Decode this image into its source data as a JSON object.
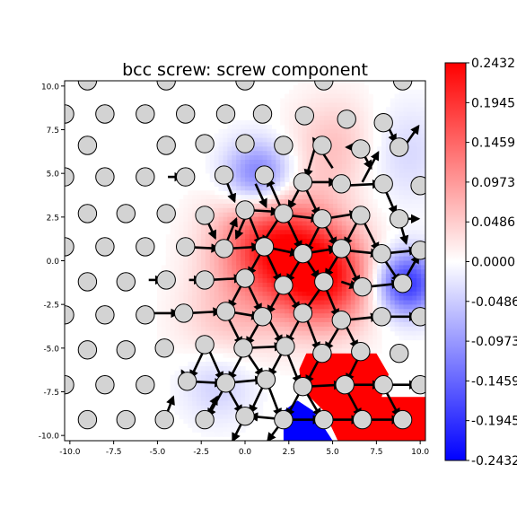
{
  "chart_data": {
    "type": "heatmap",
    "title": "bcc screw: screw component",
    "xlabel": "",
    "ylabel": "",
    "xlim": [
      -10.3,
      10.3
    ],
    "ylim": [
      -10.3,
      10.3
    ],
    "xticks": [
      "-10.0",
      "-7.5",
      "-5.0",
      "-2.5",
      "0.0",
      "2.5",
      "5.0",
      "7.5",
      "10.0"
    ],
    "yticks": [
      "-10.0",
      "-7.5",
      "-5.0",
      "-2.5",
      "0.0",
      "2.5",
      "5.0",
      "7.5",
      "10.0"
    ],
    "colorbar": {
      "colormap": "bwr",
      "min": -0.2432,
      "max": 0.2432,
      "ticks": [
        {
          "value": 0.2432,
          "label": "0.2432"
        },
        {
          "value": 0.1945,
          "label": "0.1945"
        },
        {
          "value": 0.1459,
          "label": "0.1459"
        },
        {
          "value": 0.0973,
          "label": "0.0973"
        },
        {
          "value": 0.0486,
          "label": "0.0486"
        },
        {
          "value": 0.0,
          "label": "0.0000"
        },
        {
          "value": -0.0486,
          "label": "-0.0486"
        },
        {
          "value": -0.0973,
          "label": "-0.0973"
        },
        {
          "value": -0.1459,
          "label": "-0.1459"
        },
        {
          "value": -0.1945,
          "label": "-0.1945"
        },
        {
          "value": -0.2432,
          "label": "-0.2432"
        }
      ]
    },
    "field_blobs": [
      {
        "x": 1.5,
        "y": 1.0,
        "amplitude": 0.2,
        "spread": 2.2
      },
      {
        "x": 4.5,
        "y": -1.0,
        "amplitude": 0.22,
        "spread": 2.0
      },
      {
        "x": 0.8,
        "y": 4.8,
        "amplitude": -0.15,
        "spread": 1.4
      },
      {
        "x": 9.2,
        "y": -1.3,
        "amplitude": -0.2,
        "spread": 1.3
      },
      {
        "x": 5.5,
        "y": 6.5,
        "amplitude": 0.07,
        "spread": 2.0
      },
      {
        "x": 8.5,
        "y": 6.2,
        "amplitude": -0.05,
        "spread": 2.0
      },
      {
        "x": -1.0,
        "y": -3.5,
        "amplitude": 0.05,
        "spread": 2.0
      },
      {
        "x": -1.5,
        "y": -7.0,
        "amplitude": -0.05,
        "spread": 1.5
      }
    ],
    "saturated_regions": [
      {
        "color": "#ff0000",
        "polygon": [
          [
            3.5,
            -5.3
          ],
          [
            7.5,
            -5.3
          ],
          [
            8.2,
            -6.5
          ],
          [
            7.8,
            -7.8
          ],
          [
            10.3,
            -7.8
          ],
          [
            10.3,
            -10.3
          ],
          [
            5.3,
            -10.3
          ],
          [
            4.5,
            -8.6
          ],
          [
            3.2,
            -7.3
          ],
          [
            3.1,
            -6.2
          ]
        ]
      },
      {
        "color": "#0000ff",
        "polygon": [
          [
            2.2,
            -10.3
          ],
          [
            5.0,
            -10.3
          ],
          [
            3.9,
            -8.6
          ],
          [
            3.0,
            -8.0
          ],
          [
            2.2,
            -8.6
          ]
        ]
      }
    ],
    "atoms": [
      [
        -9.0,
        10.3
      ],
      [
        -4.5,
        10.3
      ],
      [
        0.0,
        10.3
      ],
      [
        4.5,
        10.3
      ],
      [
        9.0,
        10.3
      ],
      [
        -10.3,
        8.4
      ],
      [
        -8.0,
        8.4
      ],
      [
        -5.7,
        8.4
      ],
      [
        -3.4,
        8.4
      ],
      [
        -1.1,
        8.4
      ],
      [
        1.0,
        8.4
      ],
      [
        3.4,
        8.3
      ],
      [
        5.8,
        8.1
      ],
      [
        7.9,
        7.9
      ],
      [
        -9.0,
        6.6
      ],
      [
        -4.5,
        6.6
      ],
      [
        -2.3,
        6.7
      ],
      [
        0.0,
        6.7
      ],
      [
        2.2,
        6.6
      ],
      [
        4.4,
        6.6
      ],
      [
        6.6,
        6.4
      ],
      [
        8.8,
        6.5
      ],
      [
        -10.3,
        4.8
      ],
      [
        -8.0,
        4.8
      ],
      [
        -5.7,
        4.8
      ],
      [
        -3.4,
        4.8
      ],
      [
        -1.2,
        4.9
      ],
      [
        1.1,
        4.9
      ],
      [
        3.3,
        4.5
      ],
      [
        5.5,
        4.4
      ],
      [
        7.9,
        4.4
      ],
      [
        10.0,
        4.3
      ],
      [
        -9.0,
        2.7
      ],
      [
        -6.8,
        2.7
      ],
      [
        -4.5,
        2.7
      ],
      [
        -2.3,
        2.6
      ],
      [
        0.0,
        2.9
      ],
      [
        2.2,
        2.7
      ],
      [
        4.4,
        2.4
      ],
      [
        6.6,
        2.6
      ],
      [
        8.8,
        2.4
      ],
      [
        -10.3,
        0.8
      ],
      [
        -8.0,
        0.8
      ],
      [
        -5.7,
        0.8
      ],
      [
        -3.4,
        0.8
      ],
      [
        -1.2,
        0.7
      ],
      [
        1.1,
        0.8
      ],
      [
        3.3,
        0.4
      ],
      [
        5.5,
        0.7
      ],
      [
        7.8,
        0.4
      ],
      [
        10.0,
        0.6
      ],
      [
        -9.0,
        -1.2
      ],
      [
        -6.8,
        -1.2
      ],
      [
        -4.5,
        -1.1
      ],
      [
        -2.3,
        -1.1
      ],
      [
        0.0,
        -1.0
      ],
      [
        2.2,
        -1.4
      ],
      [
        4.5,
        -1.2
      ],
      [
        6.7,
        -1.5
      ],
      [
        9.0,
        -1.3
      ],
      [
        -10.3,
        -3.1
      ],
      [
        -8.0,
        -3.1
      ],
      [
        -5.7,
        -3.1
      ],
      [
        -3.5,
        -3.0
      ],
      [
        -1.1,
        -2.9
      ],
      [
        1.0,
        -3.2
      ],
      [
        3.3,
        -3.0
      ],
      [
        5.5,
        -3.4
      ],
      [
        7.8,
        -3.2
      ],
      [
        10.0,
        -3.2
      ],
      [
        -9.0,
        -5.1
      ],
      [
        -6.8,
        -5.1
      ],
      [
        -4.6,
        -5.0
      ],
      [
        -2.3,
        -4.8
      ],
      [
        -0.1,
        -5.0
      ],
      [
        2.3,
        -4.9
      ],
      [
        4.4,
        -5.3
      ],
      [
        6.6,
        -5.2
      ],
      [
        8.8,
        -5.3
      ],
      [
        -10.3,
        -7.1
      ],
      [
        -8.0,
        -7.1
      ],
      [
        -5.7,
        -7.1
      ],
      [
        -3.3,
        -6.9
      ],
      [
        -1.1,
        -7.0
      ],
      [
        1.2,
        -6.8
      ],
      [
        3.3,
        -7.2
      ],
      [
        5.7,
        -7.1
      ],
      [
        7.9,
        -7.1
      ],
      [
        10.0,
        -7.1
      ],
      [
        -9.0,
        -9.1
      ],
      [
        -6.8,
        -9.1
      ],
      [
        -4.6,
        -9.1
      ],
      [
        -2.3,
        -9.1
      ],
      [
        0.0,
        -8.9
      ],
      [
        2.2,
        -9.1
      ],
      [
        4.5,
        -9.1
      ],
      [
        6.7,
        -9.1
      ],
      [
        9.0,
        -9.1
      ]
    ],
    "arrows": [
      [
        0.1,
        2.9,
        1.9,
        2.8
      ],
      [
        0.1,
        2.9,
        0.9,
        0.9
      ],
      [
        0.2,
        2.9,
        -0.5,
        1.3
      ],
      [
        0.6,
        4.4,
        1.2,
        3.1
      ],
      [
        2.2,
        2.7,
        1.3,
        4.7
      ],
      [
        2.1,
        2.7,
        1.0,
        1.0
      ],
      [
        2.5,
        2.6,
        4.2,
        2.4
      ],
      [
        2.3,
        2.6,
        3.2,
        0.7
      ],
      [
        3.3,
        4.5,
        2.5,
        3.0
      ],
      [
        3.3,
        4.5,
        4.2,
        2.6
      ],
      [
        3.5,
        4.5,
        5.2,
        4.5
      ],
      [
        5.0,
        5.3,
        3.9,
        7.0
      ],
      [
        4.4,
        2.3,
        3.5,
        0.5
      ],
      [
        4.5,
        2.4,
        6.4,
        2.7
      ],
      [
        4.4,
        2.3,
        5.2,
        0.9
      ],
      [
        6.6,
        2.6,
        5.7,
        0.9
      ],
      [
        6.6,
        2.6,
        7.6,
        0.6
      ],
      [
        5.6,
        4.3,
        7.7,
        4.4
      ],
      [
        7.9,
        4.3,
        8.6,
        2.7
      ],
      [
        6.7,
        4.5,
        7.6,
        6.2
      ],
      [
        6.9,
        6.5,
        5.8,
        6.5
      ],
      [
        9.0,
        6.4,
        9.9,
        7.7
      ],
      [
        8.8,
        2.4,
        9.9,
        2.4
      ],
      [
        8.8,
        2.4,
        9.2,
        1.0
      ],
      [
        -1.2,
        0.7,
        -0.5,
        2.4
      ],
      [
        -1.0,
        0.7,
        0.8,
        0.8
      ],
      [
        1.1,
        0.8,
        3.0,
        0.4
      ],
      [
        1.1,
        0.7,
        2.0,
        -1.2
      ],
      [
        1.1,
        0.8,
        0.2,
        -0.8
      ],
      [
        3.3,
        0.4,
        5.2,
        0.7
      ],
      [
        3.3,
        0.4,
        4.2,
        -1.0
      ],
      [
        3.3,
        0.3,
        2.4,
        -1.2
      ],
      [
        5.5,
        0.6,
        4.6,
        -0.9
      ],
      [
        5.7,
        0.6,
        7.6,
        0.4
      ],
      [
        5.6,
        0.6,
        6.5,
        -1.3
      ],
      [
        7.8,
        0.4,
        9.8,
        0.6
      ],
      [
        7.8,
        0.3,
        8.8,
        -1.2
      ],
      [
        5.5,
        -1.2,
        6.4,
        -1.5
      ],
      [
        6.9,
        -1.5,
        8.8,
        -1.3
      ],
      [
        9.0,
        -1.3,
        9.9,
        0.3
      ],
      [
        -3.2,
        -1.1,
        -2.5,
        -1.1
      ],
      [
        -2.1,
        -1.1,
        -0.2,
        -1.0
      ],
      [
        0.0,
        -1.0,
        0.9,
        -2.9
      ],
      [
        0.0,
        -1.0,
        -0.9,
        -2.7
      ],
      [
        2.2,
        -1.4,
        1.3,
        -3.0
      ],
      [
        2.2,
        -1.4,
        3.1,
        -2.8
      ],
      [
        4.5,
        -1.3,
        3.4,
        -2.9
      ],
      [
        4.5,
        -1.3,
        5.3,
        -3.2
      ],
      [
        -3.3,
        -3.0,
        -1.4,
        -2.9
      ],
      [
        -1.0,
        -2.9,
        0.8,
        -3.2
      ],
      [
        -1.1,
        -3.0,
        -0.2,
        -4.8
      ],
      [
        1.0,
        -3.2,
        0.1,
        -4.8
      ],
      [
        1.2,
        -3.1,
        2.1,
        -4.7
      ],
      [
        3.3,
        -3.0,
        2.4,
        -4.7
      ],
      [
        3.4,
        -3.0,
        4.2,
        -5.1
      ],
      [
        5.7,
        -3.4,
        7.6,
        -3.2
      ],
      [
        5.6,
        -3.4,
        4.6,
        -5.1
      ],
      [
        5.6,
        -3.4,
        6.4,
        -5.0
      ],
      [
        7.9,
        -3.2,
        9.8,
        -3.2
      ],
      [
        -2.2,
        -4.8,
        -1.3,
        -6.8
      ],
      [
        -2.2,
        -4.8,
        -3.1,
        -6.7
      ],
      [
        -0.1,
        -5.0,
        2.1,
        -4.9
      ],
      [
        0.0,
        -5.1,
        -0.9,
        -6.8
      ],
      [
        0.0,
        -5.1,
        1.0,
        -6.6
      ],
      [
        2.3,
        -4.9,
        1.4,
        -6.6
      ],
      [
        2.3,
        -5.0,
        3.1,
        -7.0
      ],
      [
        4.4,
        -5.3,
        3.5,
        -7.0
      ],
      [
        6.6,
        -5.3,
        5.8,
        -6.9
      ],
      [
        -3.3,
        -6.9,
        -1.3,
        -7.0
      ],
      [
        -1.1,
        -7.0,
        1.0,
        -6.8
      ],
      [
        -1.1,
        -7.1,
        -2.1,
        -8.9
      ],
      [
        -1.1,
        -7.1,
        -0.2,
        -8.7
      ],
      [
        1.2,
        -6.8,
        2.0,
        -8.9
      ],
      [
        1.2,
        -6.8,
        0.3,
        -8.7
      ],
      [
        3.5,
        -7.2,
        5.5,
        -7.1
      ],
      [
        3.3,
        -7.2,
        4.3,
        -8.9
      ],
      [
        3.3,
        -7.2,
        2.4,
        -8.9
      ],
      [
        5.9,
        -7.1,
        7.7,
        -7.1
      ],
      [
        7.9,
        -7.1,
        9.8,
        -7.1
      ],
      [
        5.7,
        -7.2,
        6.6,
        -8.9
      ],
      [
        7.9,
        -7.2,
        8.8,
        -8.9
      ],
      [
        2.4,
        -9.1,
        0.3,
        -8.9
      ],
      [
        2.4,
        -9.1,
        4.3,
        -9.1
      ],
      [
        4.7,
        -9.1,
        6.5,
        -9.1
      ],
      [
        6.9,
        -9.1,
        8.8,
        -9.1
      ],
      [
        0.0,
        -8.9,
        -0.7,
        -10.3
      ],
      [
        2.2,
        -9.1,
        1.3,
        -10.3
      ],
      [
        -2.3,
        -9.1,
        -1.6,
        -7.8
      ],
      [
        -4.6,
        -9.1,
        -4.1,
        -7.8
      ],
      [
        -3.3,
        -6.9,
        -3.6,
        -6.3
      ],
      [
        -5.3,
        -3.0,
        -3.8,
        -3.0
      ],
      [
        -5.5,
        -1.1,
        -4.7,
        -1.1
      ],
      [
        -1.2,
        4.9,
        -0.6,
        3.4
      ],
      [
        -2.3,
        2.6,
        -1.7,
        1.3
      ],
      [
        -3.6,
        0.8,
        -1.5,
        0.7
      ],
      [
        4.0,
        6.5,
        3.5,
        4.8
      ],
      [
        6.6,
        6.4,
        7.2,
        5.3
      ],
      [
        8.1,
        7.8,
        8.6,
        6.8
      ],
      [
        -4.4,
        4.8,
        -3.6,
        4.8
      ],
      [
        -8.1,
        0.9,
        -7.6,
        0.8
      ]
    ]
  }
}
